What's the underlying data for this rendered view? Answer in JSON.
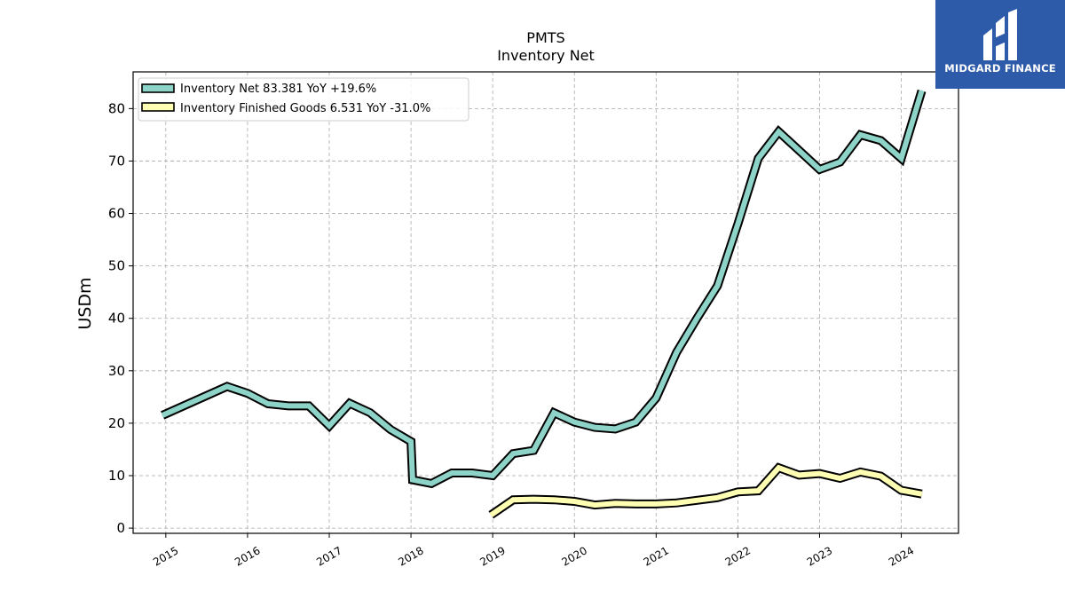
{
  "chart_data": {
    "type": "line",
    "title": "PMTS",
    "subtitle": "Inventory Net",
    "ylabel": "USDm",
    "xlabel": "",
    "ylim": [
      -1,
      87
    ],
    "xlim": [
      2014.6,
      2024.7
    ],
    "yticks": [
      0,
      10,
      20,
      30,
      40,
      50,
      60,
      70,
      80
    ],
    "xticks": [
      "2015",
      "2016",
      "2017",
      "2018",
      "2019",
      "2020",
      "2021",
      "2022",
      "2023",
      "2024"
    ],
    "grid": true,
    "legend_position": "top-left",
    "series": [
      {
        "name": "Inventory Net  83.381 YoY +19.6%",
        "color": "#8dd3c7",
        "points": [
          [
            2014.96,
            21.5
          ],
          [
            2015.75,
            27.0
          ],
          [
            2016.0,
            25.7
          ],
          [
            2016.25,
            23.7
          ],
          [
            2016.5,
            23.3
          ],
          [
            2016.75,
            23.3
          ],
          [
            2017.0,
            19.5
          ],
          [
            2017.25,
            23.8
          ],
          [
            2017.5,
            22.0
          ],
          [
            2017.75,
            18.8
          ],
          [
            2018.0,
            16.5
          ],
          [
            2018.02,
            9.2
          ],
          [
            2018.25,
            8.5
          ],
          [
            2018.5,
            10.5
          ],
          [
            2018.75,
            10.5
          ],
          [
            2019.0,
            10.0
          ],
          [
            2019.25,
            14.2
          ],
          [
            2019.5,
            14.8
          ],
          [
            2019.75,
            22.0
          ],
          [
            2020.0,
            20.2
          ],
          [
            2020.25,
            19.2
          ],
          [
            2020.5,
            18.9
          ],
          [
            2020.75,
            20.2
          ],
          [
            2021.0,
            24.8
          ],
          [
            2021.25,
            33.5
          ],
          [
            2021.5,
            40.0
          ],
          [
            2021.75,
            46.2
          ],
          [
            2022.0,
            58.0
          ],
          [
            2022.25,
            70.5
          ],
          [
            2022.5,
            75.6
          ],
          [
            2022.75,
            72.0
          ],
          [
            2023.0,
            68.4
          ],
          [
            2023.25,
            69.8
          ],
          [
            2023.5,
            75.0
          ],
          [
            2023.75,
            73.9
          ],
          [
            2024.0,
            70.5
          ],
          [
            2024.25,
            83.4
          ]
        ]
      },
      {
        "name": "Inventory Finished Goods  6.531 YoY -31.0%",
        "color": "#ffffb3",
        "points": [
          [
            2018.98,
            2.5
          ],
          [
            2019.25,
            5.4
          ],
          [
            2019.5,
            5.5
          ],
          [
            2019.75,
            5.4
          ],
          [
            2020.0,
            5.1
          ],
          [
            2020.25,
            4.4
          ],
          [
            2020.5,
            4.7
          ],
          [
            2020.75,
            4.6
          ],
          [
            2021.0,
            4.6
          ],
          [
            2021.25,
            4.8
          ],
          [
            2021.5,
            5.3
          ],
          [
            2021.75,
            5.8
          ],
          [
            2022.0,
            6.9
          ],
          [
            2022.25,
            7.1
          ],
          [
            2022.5,
            11.5
          ],
          [
            2022.75,
            10.1
          ],
          [
            2023.0,
            10.4
          ],
          [
            2023.25,
            9.5
          ],
          [
            2023.5,
            10.7
          ],
          [
            2023.75,
            9.9
          ],
          [
            2024.0,
            7.2
          ],
          [
            2024.25,
            6.5
          ]
        ]
      }
    ]
  },
  "logo": {
    "text": "MIDGARD FINANCE"
  }
}
